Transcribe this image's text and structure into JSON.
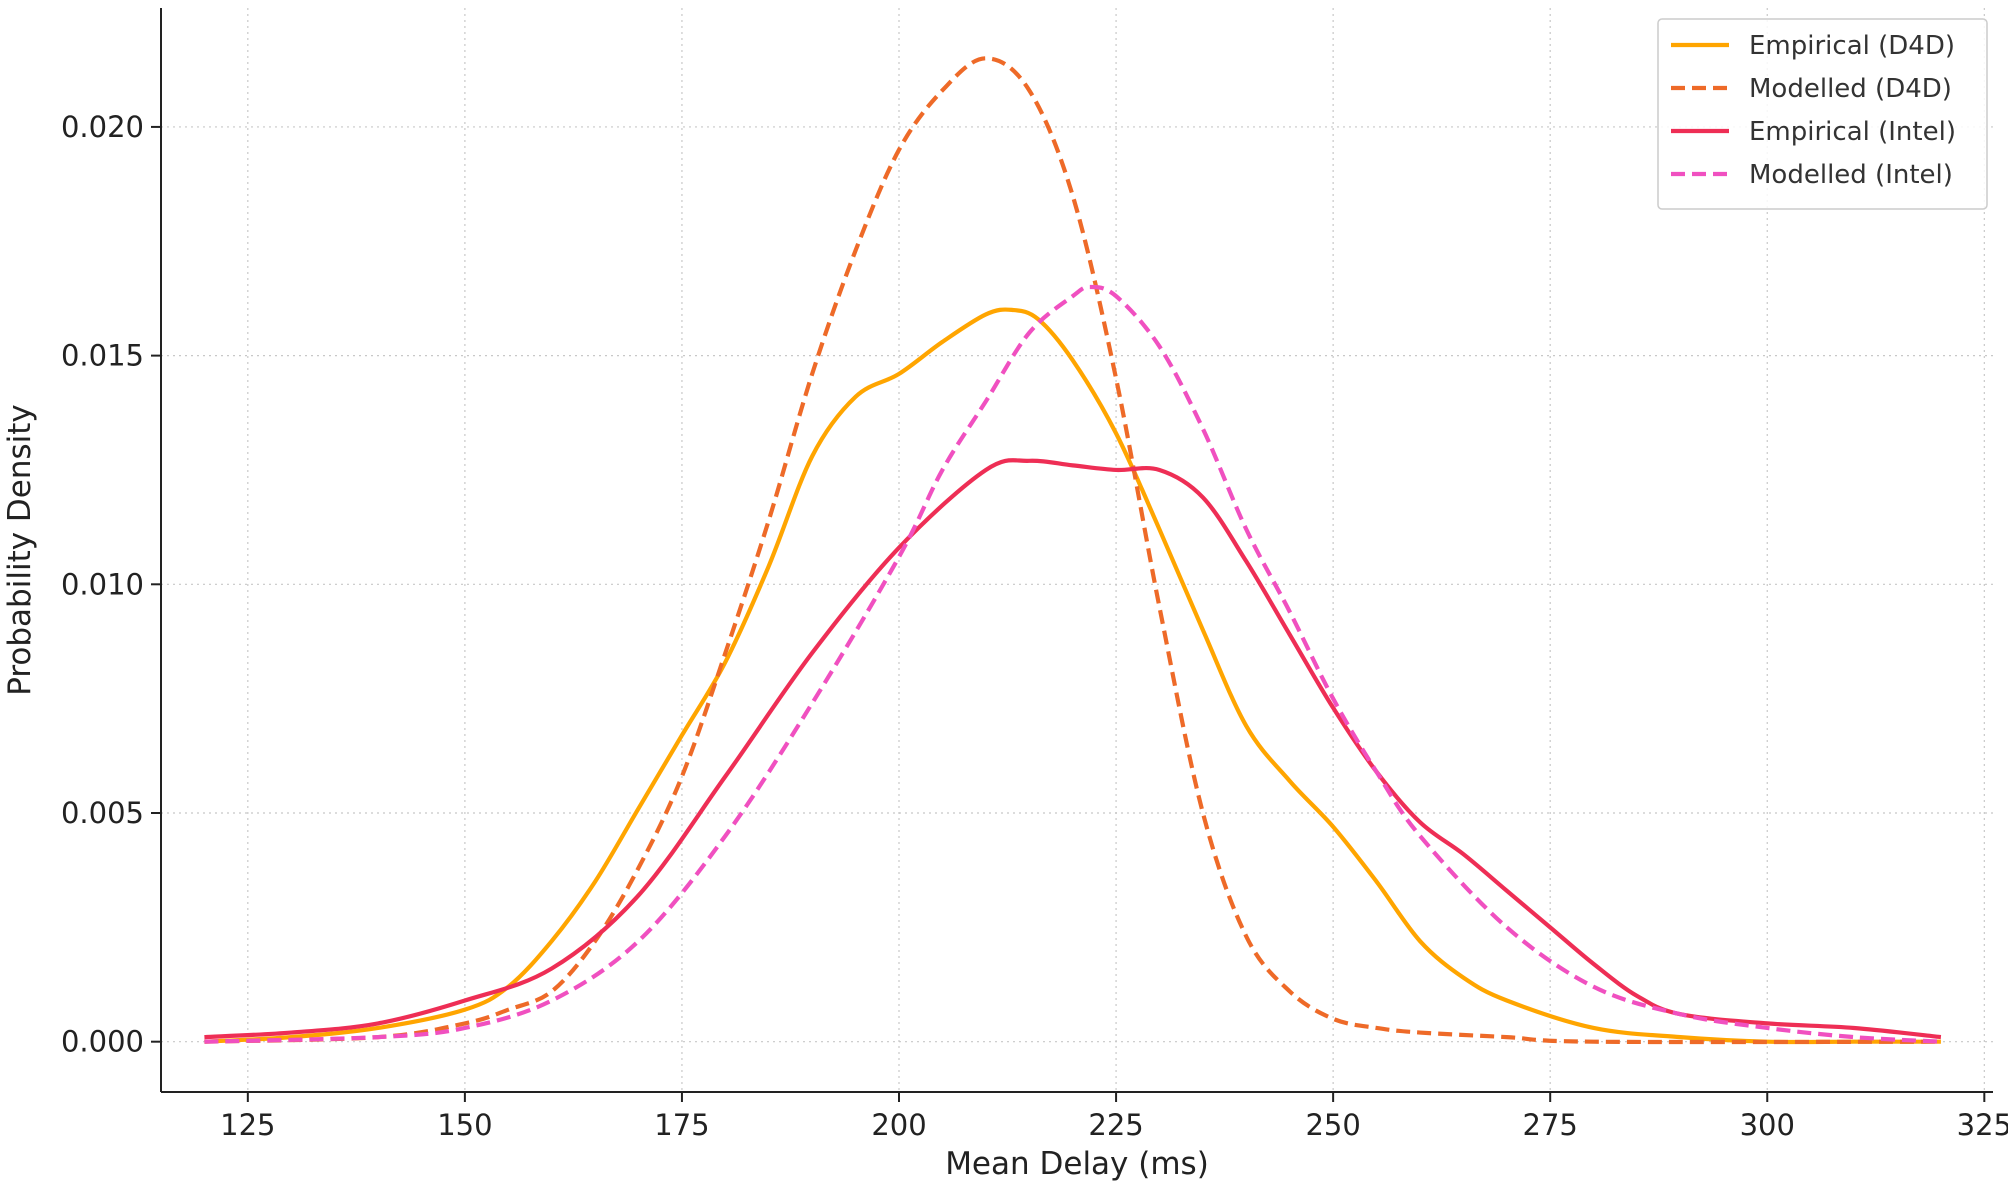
{
  "chart_data": {
    "type": "line",
    "title": "",
    "xlabel": "Mean Delay (ms)",
    "ylabel": "Probability Density",
    "xlim": [
      115,
      326
    ],
    "ylim": [
      -0.0011,
      0.0226
    ],
    "x_ticks": [
      125,
      150,
      175,
      200,
      225,
      250,
      275,
      300,
      325
    ],
    "y_ticks": [
      0.0,
      0.005,
      0.01,
      0.015,
      0.02
    ],
    "x_tick_labels": [
      "125",
      "150",
      "175",
      "200",
      "225",
      "250",
      "275",
      "300",
      "325"
    ],
    "y_tick_labels": [
      "0.000",
      "0.005",
      "0.010",
      "0.015",
      "0.020"
    ],
    "grid": true,
    "legend_position": "top-right",
    "series": [
      {
        "name": "Empirical (D4D)",
        "color": "#FFA500",
        "style": "solid",
        "x": [
          120,
          130,
          140,
          150,
          155,
          160,
          165,
          170,
          175,
          180,
          185,
          190,
          195,
          200,
          205,
          210,
          213,
          216,
          220,
          225,
          230,
          235,
          240,
          245,
          250,
          255,
          260,
          265,
          270,
          280,
          290,
          300,
          310,
          320
        ],
        "y": [
          0.0,
          0.0001,
          0.0003,
          0.0007,
          0.0012,
          0.0022,
          0.0035,
          0.0051,
          0.0067,
          0.0083,
          0.0104,
          0.0128,
          0.0141,
          0.0146,
          0.0153,
          0.0159,
          0.016,
          0.0158,
          0.0149,
          0.0133,
          0.0112,
          0.009,
          0.0069,
          0.0057,
          0.0047,
          0.0035,
          0.0022,
          0.0014,
          0.0009,
          0.0003,
          0.0001,
          0.0,
          0.0,
          0.0
        ]
      },
      {
        "name": "Modelled (D4D)",
        "color": "#EE6A28",
        "style": "dashed",
        "x": [
          120,
          140,
          150,
          155,
          160,
          165,
          170,
          175,
          180,
          185,
          190,
          195,
          200,
          205,
          210,
          215,
          220,
          225,
          230,
          235,
          240,
          245,
          250,
          255,
          260,
          270,
          280,
          320
        ],
        "y": [
          0.0,
          0.0001,
          0.0004,
          0.0007,
          0.0011,
          0.0022,
          0.0038,
          0.0058,
          0.0085,
          0.0114,
          0.0146,
          0.0173,
          0.0195,
          0.0208,
          0.0215,
          0.0208,
          0.0185,
          0.0145,
          0.0095,
          0.005,
          0.0023,
          0.0011,
          0.0005,
          0.0003,
          0.0002,
          0.0001,
          0.0,
          0.0
        ]
      },
      {
        "name": "Empirical (Intel)",
        "color": "#EE2E55",
        "style": "solid",
        "x": [
          120,
          130,
          140,
          150,
          160,
          170,
          180,
          190,
          200,
          210,
          215,
          220,
          225,
          230,
          235,
          240,
          245,
          250,
          255,
          260,
          265,
          270,
          275,
          280,
          285,
          290,
          300,
          310,
          320
        ],
        "y": [
          0.0001,
          0.0002,
          0.0004,
          0.0009,
          0.0016,
          0.0032,
          0.0058,
          0.0085,
          0.0108,
          0.0125,
          0.0127,
          0.0126,
          0.0125,
          0.0125,
          0.0119,
          0.0105,
          0.0089,
          0.0073,
          0.0059,
          0.0048,
          0.0041,
          0.0033,
          0.0025,
          0.0017,
          0.001,
          0.0006,
          0.0004,
          0.0003,
          0.0001
        ]
      },
      {
        "name": "Modelled (Intel)",
        "color": "#F050C0",
        "style": "dashed",
        "x": [
          120,
          140,
          150,
          160,
          170,
          180,
          190,
          200,
          205,
          210,
          215,
          220,
          222,
          225,
          230,
          235,
          240,
          245,
          250,
          255,
          260,
          270,
          280,
          290,
          300,
          310,
          320
        ],
        "y": [
          0.0,
          0.0001,
          0.0003,
          0.0009,
          0.0022,
          0.0045,
          0.0074,
          0.0106,
          0.0125,
          0.014,
          0.0155,
          0.0163,
          0.0165,
          0.0163,
          0.0152,
          0.0134,
          0.0112,
          0.0094,
          0.0075,
          0.0059,
          0.0045,
          0.0025,
          0.0012,
          0.0006,
          0.0003,
          0.0001,
          0.0
        ]
      }
    ]
  }
}
